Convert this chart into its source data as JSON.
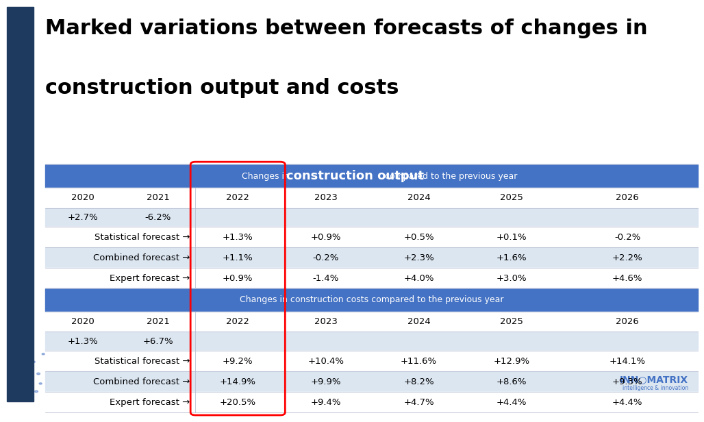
{
  "title_line1": "Marked variations between forecasts of changes in",
  "title_line2": "construction output and costs",
  "title_fontsize": 22,
  "left_bar_color": "#1e3a5f",
  "bg_color": "#ffffff",
  "header_bg": "#4472c4",
  "header_text_color": "#ffffff",
  "row_light": "#dce6f1",
  "row_white": "#ffffff",
  "table2_header": "Changes in construction costs compared to the previous year",
  "years": [
    "2020",
    "2021",
    "2022",
    "2023",
    "2024",
    "2025",
    "2026"
  ],
  "output_actuals": [
    "+2.7%",
    "-6.2%",
    "",
    "",
    "",
    "",
    ""
  ],
  "output_stat": [
    "",
    "",
    "+1.3%",
    "+0.9%",
    "+0.5%",
    "+0.1%",
    "-0.2%"
  ],
  "output_combined": [
    "",
    "",
    "+1.1%",
    "-0.2%",
    "+2.3%",
    "+1.6%",
    "+2.2%"
  ],
  "output_expert": [
    "",
    "",
    "+0.9%",
    "-1.4%",
    "+4.0%",
    "+3.0%",
    "+4.6%"
  ],
  "costs_actuals": [
    "+1.3%",
    "+6.7%",
    "",
    "",
    "",
    "",
    ""
  ],
  "costs_stat": [
    "",
    "",
    "+9.2%",
    "+10.4%",
    "+11.6%",
    "+12.9%",
    "+14.1%"
  ],
  "costs_combined": [
    "",
    "",
    "+14.9%",
    "+9.9%",
    "+8.2%",
    "+8.6%",
    "+9.3%"
  ],
  "costs_expert": [
    "",
    "",
    "+20.5%",
    "+9.4%",
    "+4.7%",
    "+4.4%",
    "+4.4%"
  ],
  "forecast_labels": [
    "Statistical forecast →",
    "Combined forecast →",
    "Expert forecast →"
  ],
  "logo_text": "INN○MATRIX",
  "logo_sub": "intelligence & innovation",
  "col_starts_rel": [
    0.0,
    0.115,
    0.23,
    0.36,
    0.5,
    0.645,
    0.785,
    1.0
  ]
}
